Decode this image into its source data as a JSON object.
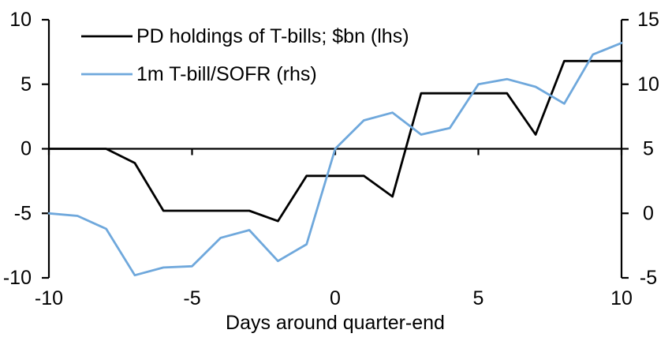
{
  "chart_data": {
    "type": "line",
    "title": "",
    "xlabel": "Days around quarter-end",
    "grid": "off",
    "legend_position": "top-left",
    "x": [
      -10,
      -9,
      -8,
      -7,
      -6,
      -5,
      -4,
      -3,
      -2,
      -1,
      0,
      1,
      2,
      3,
      4,
      5,
      6,
      7,
      8,
      9,
      10
    ],
    "x_ticks": [
      -10,
      -5,
      0,
      5,
      10
    ],
    "left_axis": {
      "range": [
        -10,
        10
      ],
      "label_values": [
        10,
        5,
        0,
        -5,
        -10
      ]
    },
    "right_axis": {
      "range": [
        -5,
        15
      ],
      "label_values": [
        15,
        10,
        5,
        0,
        -5
      ]
    },
    "baseline_left_value": 0,
    "series": [
      {
        "name": "PD holdings of T-bills; $bn (lhs)",
        "axis": "left",
        "color": "#000000",
        "values": [
          0,
          0,
          0,
          -1.1,
          -4.8,
          -4.8,
          -4.8,
          -4.8,
          -5.6,
          -2.1,
          -2.1,
          -2.1,
          -3.7,
          4.3,
          4.3,
          4.3,
          4.3,
          1.1,
          6.8,
          6.8,
          6.8
        ]
      },
      {
        "name": "1m T-bill/SOFR (rhs)",
        "axis": "right",
        "color": "#6FA8DC",
        "values": [
          0,
          -0.2,
          -1.2,
          -4.8,
          -4.2,
          -4.1,
          -1.9,
          -1.3,
          -3.7,
          -2.4,
          5.0,
          7.2,
          7.8,
          6.1,
          6.6,
          10.0,
          10.4,
          9.8,
          8.5,
          12.3,
          13.2
        ]
      }
    ]
  }
}
